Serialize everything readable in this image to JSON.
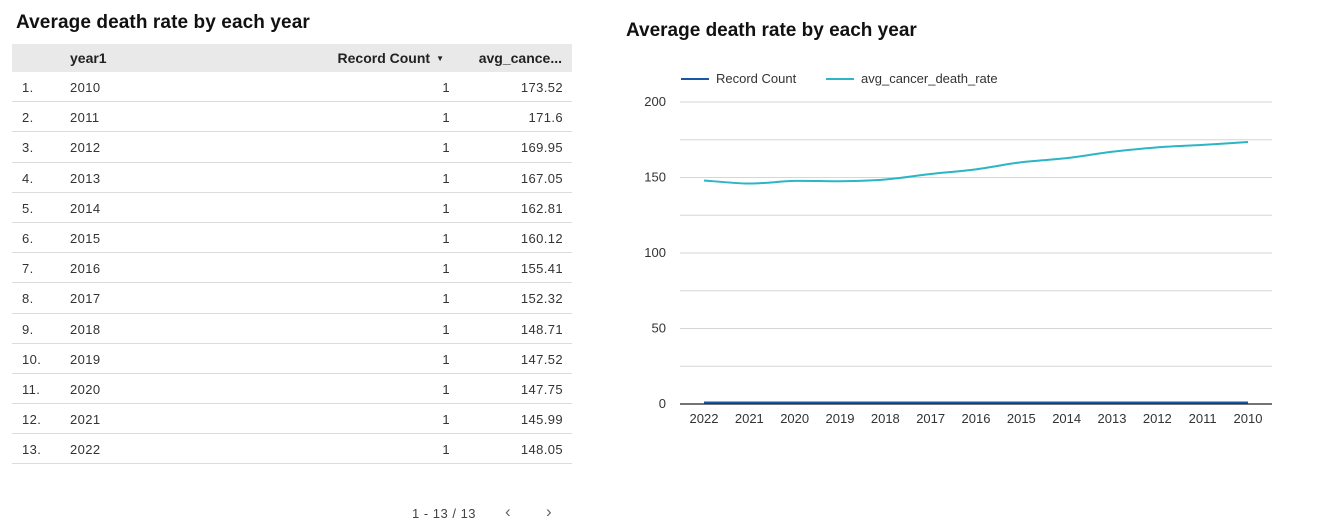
{
  "table": {
    "title": "Average death rate by each year",
    "columns": {
      "year": "year1",
      "count": "Record Count",
      "avg": "avg_cance..."
    },
    "rows": [
      {
        "idx": "1.",
        "year": "2010",
        "count": "1",
        "avg": "173.52"
      },
      {
        "idx": "2.",
        "year": "2011",
        "count": "1",
        "avg": "171.6"
      },
      {
        "idx": "3.",
        "year": "2012",
        "count": "1",
        "avg": "169.95"
      },
      {
        "idx": "4.",
        "year": "2013",
        "count": "1",
        "avg": "167.05"
      },
      {
        "idx": "5.",
        "year": "2014",
        "count": "1",
        "avg": "162.81"
      },
      {
        "idx": "6.",
        "year": "2015",
        "count": "1",
        "avg": "160.12"
      },
      {
        "idx": "7.",
        "year": "2016",
        "count": "1",
        "avg": "155.41"
      },
      {
        "idx": "8.",
        "year": "2017",
        "count": "1",
        "avg": "152.32"
      },
      {
        "idx": "9.",
        "year": "2018",
        "count": "1",
        "avg": "148.71"
      },
      {
        "idx": "10.",
        "year": "2019",
        "count": "1",
        "avg": "147.52"
      },
      {
        "idx": "11.",
        "year": "2020",
        "count": "1",
        "avg": "147.75"
      },
      {
        "idx": "12.",
        "year": "2021",
        "count": "1",
        "avg": "145.99"
      },
      {
        "idx": "13.",
        "year": "2022",
        "count": "1",
        "avg": "148.05"
      }
    ],
    "pagination": "1 - 13 / 13",
    "prev_icon": "‹",
    "next_icon": "›"
  },
  "chart_title": "Average death rate by each year",
  "chart_data": {
    "type": "line",
    "title": "Average death rate by each year",
    "categories": [
      "2022",
      "2021",
      "2020",
      "2019",
      "2018",
      "2017",
      "2016",
      "2015",
      "2014",
      "2013",
      "2012",
      "2011",
      "2010"
    ],
    "series": [
      {
        "name": "Record Count",
        "color": "#1a56a8",
        "values": [
          1,
          1,
          1,
          1,
          1,
          1,
          1,
          1,
          1,
          1,
          1,
          1,
          1
        ]
      },
      {
        "name": "avg_cancer_death_rate",
        "color": "#2cb5c4",
        "values": [
          148.05,
          145.99,
          147.75,
          147.52,
          148.71,
          152.32,
          155.41,
          160.12,
          162.81,
          167.05,
          169.95,
          171.6,
          173.52
        ]
      }
    ],
    "yticks": [
      0,
      50,
      100,
      150,
      200
    ],
    "ylim": [
      0,
      200
    ],
    "grid": true,
    "legend_position": "top-left"
  }
}
